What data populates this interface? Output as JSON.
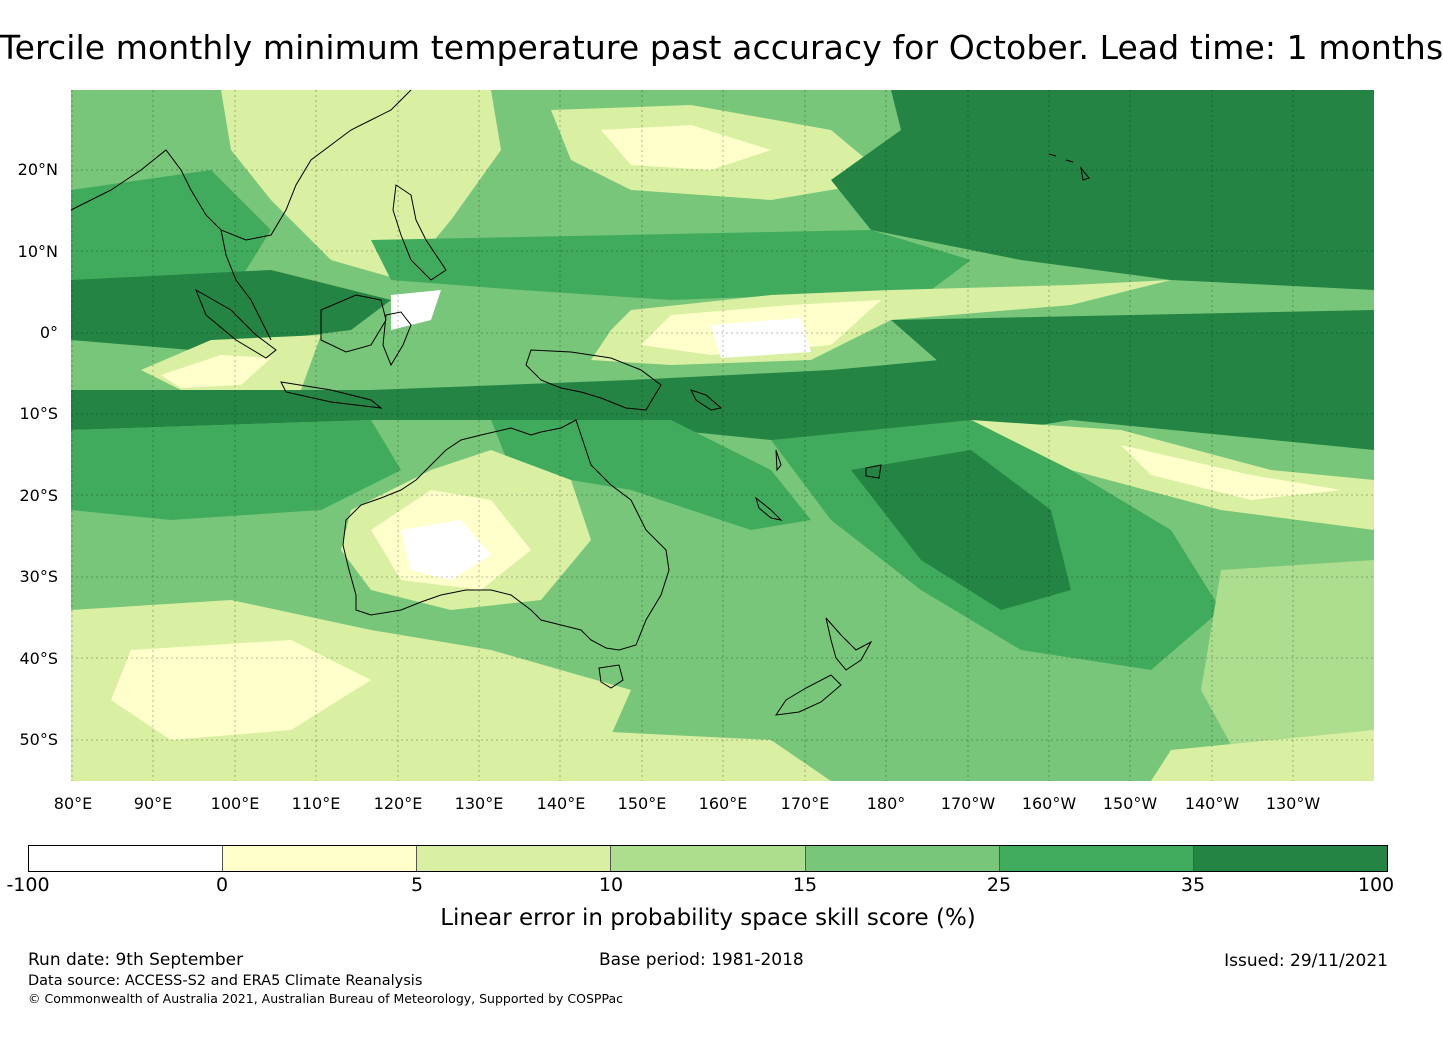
{
  "title": "Tercile monthly minimum temperature past accuracy for October. Lead time: 1 months",
  "map": {
    "lat_labels": [
      "20°N",
      "10°N",
      "0°",
      "10°S",
      "20°S",
      "30°S",
      "40°S",
      "50°S"
    ],
    "lon_labels": [
      "80°E",
      "90°E",
      "100°E",
      "110°E",
      "120°E",
      "130°E",
      "140°E",
      "150°E",
      "160°E",
      "170°E",
      "180°",
      "170°W",
      "160°W",
      "150°W",
      "140°W",
      "130°W"
    ],
    "region": "Australia and western/central Pacific Ocean",
    "notes": "Shaded grid of skill score; highest skill (dark green) across tropical and central Pacific, low skill (white/yellow) along equator near 150–180°E, over interior Western Australia and in the far south-west."
  },
  "colorbar": {
    "ticks": [
      "-100",
      "0",
      "5",
      "10",
      "15",
      "25",
      "35",
      "100"
    ],
    "colors": [
      "#ffffff",
      "#ffffcc",
      "#d9f0a3",
      "#addd8e",
      "#78c679",
      "#41ab5d",
      "#238443"
    ],
    "label": "Linear error in probability space skill score (%)"
  },
  "footer": {
    "run_date": "Run date: 9th September",
    "base_period": "Base period: 1981-2018",
    "issued": "Issued: 29/11/2021",
    "data_source": "Data source: ACCESS-S2 and ERA5 Climate Reanalysis",
    "copyright": "© Commonwealth of Australia 2021, Australian Bureau of Meteorology, Supported by COSPPac"
  }
}
